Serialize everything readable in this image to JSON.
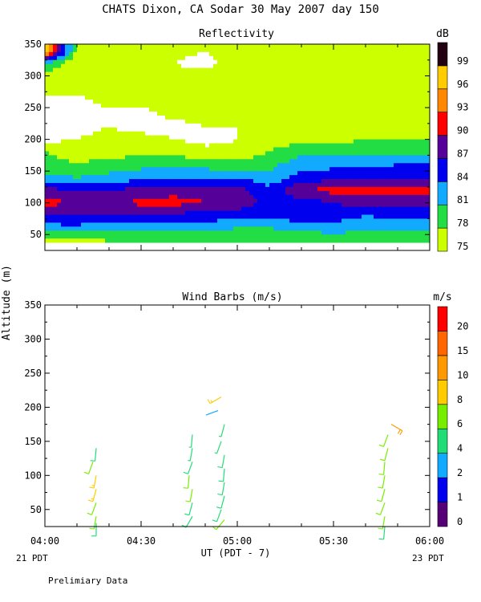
{
  "page": {
    "title": "CHATS Dixon, CA  Sodar  30 May 2007  day 150",
    "ylabel": "Altitude (m)",
    "xlabel": "UT  (PDT - 7)",
    "left_day": "21 PDT",
    "right_day": "23 PDT",
    "footer": "Prelimiary Data"
  },
  "chart_data": [
    {
      "type": "heatmap",
      "title": "Reflectivity",
      "colorbar_unit": "dB",
      "xlim": [
        "04:00",
        "06:00"
      ],
      "ylim": [
        25,
        350
      ],
      "yticks": [
        50,
        100,
        150,
        200,
        250,
        300,
        350
      ],
      "levels": [
        75,
        78,
        81,
        84,
        87,
        90,
        93,
        96,
        99
      ],
      "level_labels": [
        "75",
        "78",
        "81",
        "84",
        "87",
        "90",
        "93",
        "96",
        "99"
      ],
      "colors": [
        "#ccff00",
        "#22dd44",
        "#11aaff",
        "#0000ee",
        "#550099",
        "#ff0000",
        "#ff8800",
        "#ffcc00",
        "#220011"
      ],
      "times_min": [
        0,
        10,
        20,
        30,
        40,
        50,
        60,
        70,
        80,
        90,
        100,
        110,
        120
      ],
      "altitudes_m": [
        40,
        60,
        80,
        100,
        120,
        140,
        160,
        180,
        200,
        220,
        240,
        260,
        280,
        300,
        320,
        340
      ],
      "values_db": [
        [
          77,
          77,
          78,
          78,
          78,
          78,
          78,
          79,
          78,
          78,
          78,
          79,
          79
        ],
        [
          83,
          83,
          82,
          82,
          82,
          82,
          81,
          81,
          82,
          83,
          82,
          82,
          82
        ],
        [
          86,
          87,
          87,
          86,
          86,
          86,
          85,
          85,
          86,
          85,
          84,
          85,
          85
        ],
        [
          91,
          90,
          89,
          91,
          91,
          90,
          89,
          86,
          85,
          87,
          89,
          88,
          88
        ],
        [
          88,
          87,
          87,
          88,
          89,
          89,
          88,
          85,
          90,
          91,
          91,
          91,
          91
        ],
        [
          82,
          81,
          82,
          83,
          83,
          83,
          84,
          82,
          85,
          86,
          86,
          86,
          86
        ],
        [
          79,
          78,
          79,
          80,
          80,
          80,
          79,
          80,
          83,
          83,
          83,
          84,
          84
        ],
        [
          78,
          77,
          77,
          77,
          77,
          76,
          76,
          78,
          80,
          80,
          80,
          80,
          80
        ],
        [
          74,
          75,
          76,
          76,
          75,
          74,
          75,
          77,
          77,
          77,
          78,
          78,
          78
        ],
        [
          74,
          74,
          75,
          74,
          74,
          75,
          75,
          77,
          77,
          77,
          76,
          76,
          77
        ],
        [
          74,
          74,
          74,
          74,
          76,
          76,
          76,
          77,
          76,
          76,
          76,
          76,
          77
        ],
        [
          74,
          74,
          76,
          76,
          77,
          76,
          77,
          78,
          77,
          78,
          78,
          77,
          78
        ],
        [
          77,
          76,
          76,
          76,
          76,
          77,
          78,
          78,
          77,
          78,
          77,
          76,
          76
        ],
        [
          76,
          76,
          77,
          76,
          76,
          76,
          76,
          78,
          77,
          77,
          77,
          77,
          76
        ],
        [
          82,
          75,
          76,
          77,
          75,
          74,
          77,
          76,
          77,
          78,
          76,
          76,
          77
        ],
        [
          99,
          77,
          75,
          75,
          76,
          75,
          76,
          76,
          77,
          77,
          76,
          76,
          76
        ]
      ]
    },
    {
      "type": "scatter",
      "title": "Wind Barbs (m/s)",
      "colorbar_unit": "m/s",
      "xlim": [
        "04:00",
        "06:00"
      ],
      "xticks": [
        "04:00",
        "04:30",
        "05:00",
        "05:30",
        "06:00"
      ],
      "ylim": [
        25,
        350
      ],
      "yticks": [
        50,
        100,
        150,
        200,
        250,
        300,
        350
      ],
      "speed_levels": [
        0,
        1,
        2,
        4,
        6,
        8,
        10,
        15,
        20
      ],
      "speed_labels": [
        "0",
        "1",
        "2",
        "4",
        "6",
        "8",
        "10",
        "15",
        "20"
      ],
      "colors": [
        "#550077",
        "#0000ee",
        "#11aaff",
        "#22dd77",
        "#77ee00",
        "#ffcc00",
        "#ff9900",
        "#ff6600",
        "#ff0000"
      ],
      "barbs": [
        {
          "time_min": 16,
          "altitude_m": 30,
          "speed": 5,
          "dir_deg": 180
        },
        {
          "time_min": 16,
          "altitude_m": 40,
          "speed": 6,
          "dir_deg": 190
        },
        {
          "time_min": 16,
          "altitude_m": 60,
          "speed": 7,
          "dir_deg": 200
        },
        {
          "time_min": 16,
          "altitude_m": 80,
          "speed": 8,
          "dir_deg": 195
        },
        {
          "time_min": 16,
          "altitude_m": 100,
          "speed": 8,
          "dir_deg": 190
        },
        {
          "time_min": 15,
          "altitude_m": 120,
          "speed": 6,
          "dir_deg": 200
        },
        {
          "time_min": 16,
          "altitude_m": 140,
          "speed": 5,
          "dir_deg": 185
        },
        {
          "time_min": 46,
          "altitude_m": 40,
          "speed": 5,
          "dir_deg": 210
        },
        {
          "time_min": 46,
          "altitude_m": 60,
          "speed": 5,
          "dir_deg": 195
        },
        {
          "time_min": 46,
          "altitude_m": 80,
          "speed": 6,
          "dir_deg": 190
        },
        {
          "time_min": 45,
          "altitude_m": 100,
          "speed": 6,
          "dir_deg": 185
        },
        {
          "time_min": 46,
          "altitude_m": 120,
          "speed": 5,
          "dir_deg": 200
        },
        {
          "time_min": 46,
          "altitude_m": 140,
          "speed": 4,
          "dir_deg": 190
        },
        {
          "time_min": 46,
          "altitude_m": 160,
          "speed": 4,
          "dir_deg": 185
        },
        {
          "time_min": 56,
          "altitude_m": 35,
          "speed": 7,
          "dir_deg": 220
        },
        {
          "time_min": 55,
          "altitude_m": 50,
          "speed": 5,
          "dir_deg": 200
        },
        {
          "time_min": 56,
          "altitude_m": 70,
          "speed": 5,
          "dir_deg": 195
        },
        {
          "time_min": 56,
          "altitude_m": 90,
          "speed": 5,
          "dir_deg": 190
        },
        {
          "time_min": 56,
          "altitude_m": 110,
          "speed": 5,
          "dir_deg": 185
        },
        {
          "time_min": 56,
          "altitude_m": 130,
          "speed": 5,
          "dir_deg": 190
        },
        {
          "time_min": 55,
          "altitude_m": 150,
          "speed": 4,
          "dir_deg": 200
        },
        {
          "time_min": 56,
          "altitude_m": 175,
          "speed": 4,
          "dir_deg": 195
        },
        {
          "time_min": 54,
          "altitude_m": 195,
          "speed": 2,
          "dir_deg": 250
        },
        {
          "time_min": 55,
          "altitude_m": 215,
          "speed": 8,
          "dir_deg": 240
        },
        {
          "time_min": 106,
          "altitude_m": 25,
          "speed": 5,
          "dir_deg": 185
        },
        {
          "time_min": 106,
          "altitude_m": 40,
          "speed": 6,
          "dir_deg": 190
        },
        {
          "time_min": 106,
          "altitude_m": 60,
          "speed": 7,
          "dir_deg": 200
        },
        {
          "time_min": 106,
          "altitude_m": 80,
          "speed": 6,
          "dir_deg": 195
        },
        {
          "time_min": 106,
          "altitude_m": 100,
          "speed": 7,
          "dir_deg": 190
        },
        {
          "time_min": 106,
          "altitude_m": 120,
          "speed": 7,
          "dir_deg": 185
        },
        {
          "time_min": 107,
          "altitude_m": 140,
          "speed": 6,
          "dir_deg": 195
        },
        {
          "time_min": 107,
          "altitude_m": 160,
          "speed": 6,
          "dir_deg": 200
        },
        {
          "time_min": 108,
          "altitude_m": 175,
          "speed": 11,
          "dir_deg": 120
        }
      ]
    }
  ]
}
